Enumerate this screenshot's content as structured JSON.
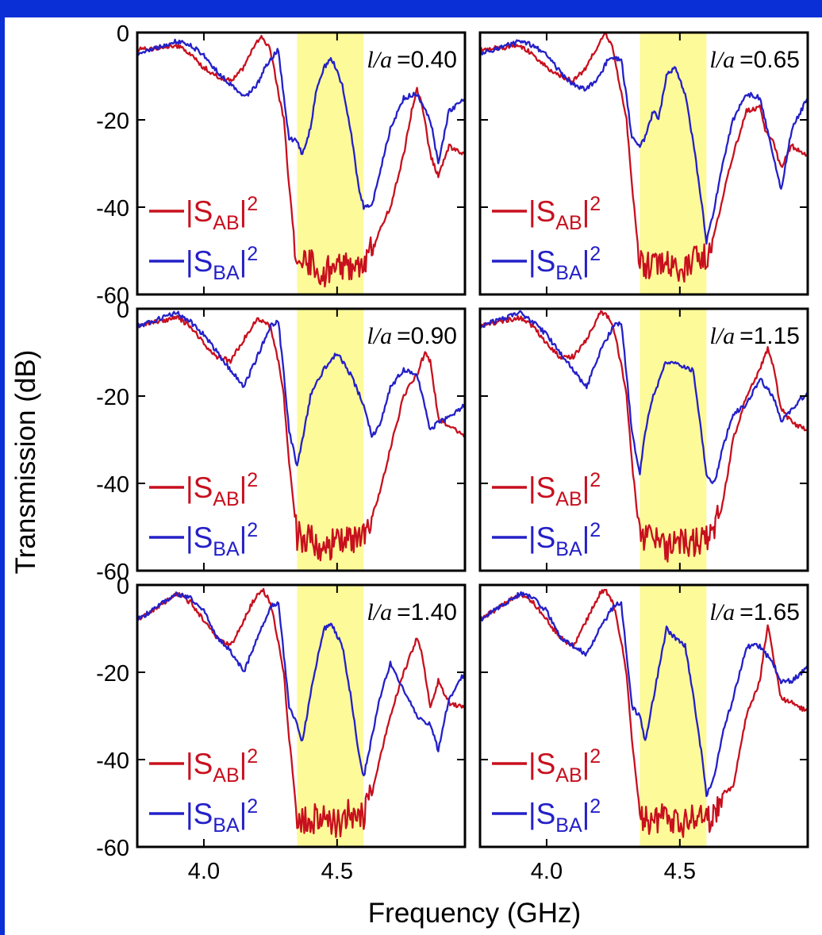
{
  "figure": {
    "ylabel": "Transmission (dB)",
    "xlabel": "Frequency (GHz)",
    "xticks": [
      "4.0",
      "4.5"
    ],
    "yticks": [
      "0",
      "-20",
      "-40",
      "-60"
    ],
    "highlight_band_ghz": [
      4.35,
      4.6
    ],
    "colors": {
      "S_AB": "#c8101e",
      "S_BA": "#2420c8",
      "band": "#fdfa9a",
      "frame_bg": "#0a2fd6"
    }
  },
  "chart_data": [
    {
      "type": "line",
      "label": "l/a =0.40",
      "param_value": "=0.40",
      "xlim": [
        3.75,
        4.98
      ],
      "ylim": [
        -60,
        0
      ],
      "series": [
        {
          "name": "|S_AB|²",
          "legend_text": "|S",
          "legend_sub": "AB",
          "legend_sup": "2",
          "color": "#c8101e",
          "x": [
            3.75,
            3.9,
            3.95,
            4.0,
            4.05,
            4.1,
            4.15,
            4.2,
            4.22,
            4.25,
            4.28,
            4.3,
            4.32,
            4.35,
            4.4,
            4.45,
            4.5,
            4.55,
            4.6,
            4.63,
            4.66,
            4.7,
            4.75,
            4.78,
            4.8,
            4.82,
            4.85,
            4.88,
            4.92,
            4.98
          ],
          "y": [
            -4,
            -3,
            -5,
            -8,
            -10,
            -11,
            -8,
            -2,
            -1,
            -4,
            -14,
            -20,
            -35,
            -54,
            -53,
            -55,
            -53,
            -54,
            -52,
            -50,
            -45,
            -40,
            -28,
            -18,
            -13,
            -17,
            -28,
            -33,
            -26,
            -28
          ]
        },
        {
          "name": "|S_BA|²",
          "legend_text": "|S",
          "legend_sub": "BA",
          "legend_sup": "2",
          "color": "#2420c8",
          "x": [
            3.75,
            3.9,
            3.95,
            4.0,
            4.05,
            4.1,
            4.15,
            4.2,
            4.23,
            4.25,
            4.28,
            4.3,
            4.32,
            4.35,
            4.37,
            4.4,
            4.42,
            4.45,
            4.48,
            4.52,
            4.55,
            4.58,
            4.6,
            4.63,
            4.66,
            4.7,
            4.75,
            4.8,
            4.85,
            4.88,
            4.92,
            4.98
          ],
          "y": [
            -5,
            -2,
            -3,
            -5,
            -9,
            -12,
            -15,
            -12,
            -8,
            -6,
            -4,
            -15,
            -24,
            -25,
            -28,
            -22,
            -14,
            -8,
            -6,
            -12,
            -22,
            -35,
            -40,
            -40,
            -32,
            -22,
            -15,
            -14,
            -20,
            -30,
            -18,
            -15
          ]
        }
      ]
    },
    {
      "type": "line",
      "label": "l/a =0.65",
      "param_value": "=0.65",
      "xlim": [
        3.75,
        4.98
      ],
      "ylim": [
        -60,
        0
      ],
      "series": [
        {
          "name": "|S_AB|²",
          "legend_text": "|S",
          "legend_sub": "AB",
          "legend_sup": "2",
          "color": "#c8101e",
          "x": [
            3.75,
            3.9,
            3.95,
            4.0,
            4.05,
            4.1,
            4.15,
            4.2,
            4.22,
            4.25,
            4.28,
            4.3,
            4.32,
            4.35,
            4.4,
            4.45,
            4.5,
            4.55,
            4.6,
            4.63,
            4.66,
            4.7,
            4.75,
            4.8,
            4.82,
            4.85,
            4.88,
            4.92,
            4.98
          ],
          "y": [
            -4,
            -3,
            -5,
            -8,
            -10,
            -11,
            -8,
            -2,
            0,
            -4,
            -14,
            -20,
            -35,
            -53,
            -54,
            -53,
            -55,
            -52,
            -52,
            -46,
            -38,
            -28,
            -18,
            -17,
            -22,
            -25,
            -31,
            -26,
            -28
          ]
        },
        {
          "name": "|S_BA|²",
          "legend_text": "|S",
          "legend_sub": "BA",
          "legend_sup": "2",
          "color": "#2420c8",
          "x": [
            3.75,
            3.9,
            3.95,
            4.0,
            4.05,
            4.1,
            4.15,
            4.2,
            4.23,
            4.25,
            4.28,
            4.3,
            4.32,
            4.35,
            4.37,
            4.4,
            4.42,
            4.45,
            4.48,
            4.52,
            4.55,
            4.58,
            4.6,
            4.63,
            4.66,
            4.7,
            4.75,
            4.8,
            4.85,
            4.88,
            4.92,
            4.98
          ],
          "y": [
            -5,
            -2,
            -3,
            -5,
            -9,
            -12,
            -13,
            -10,
            -6,
            -6,
            -6,
            -15,
            -24,
            -26,
            -24,
            -18,
            -20,
            -10,
            -8,
            -14,
            -25,
            -38,
            -48,
            -40,
            -30,
            -20,
            -14,
            -15,
            -28,
            -36,
            -22,
            -15
          ]
        }
      ]
    },
    {
      "type": "line",
      "label": "l/a =0.90",
      "param_value": "=0.90",
      "xlim": [
        3.75,
        4.98
      ],
      "ylim": [
        -60,
        0
      ],
      "series": [
        {
          "name": "|S_AB|²",
          "legend_text": "|S",
          "legend_sub": "AB",
          "legend_sup": "2",
          "color": "#c8101e",
          "x": [
            3.75,
            3.9,
            3.95,
            4.0,
            4.05,
            4.1,
            4.15,
            4.2,
            4.25,
            4.28,
            4.3,
            4.32,
            4.35,
            4.4,
            4.45,
            4.5,
            4.55,
            4.6,
            4.63,
            4.66,
            4.7,
            4.75,
            4.8,
            4.83,
            4.85,
            4.88,
            4.92,
            4.98
          ],
          "y": [
            -4,
            -2,
            -4,
            -8,
            -11,
            -12,
            -7,
            -2,
            -4,
            -12,
            -20,
            -35,
            -52,
            -53,
            -55,
            -53,
            -53,
            -52,
            -48,
            -42,
            -32,
            -20,
            -15,
            -10,
            -12,
            -25,
            -27,
            -29
          ]
        },
        {
          "name": "|S_BA|²",
          "legend_text": "|S",
          "legend_sub": "BA",
          "legend_sup": "2",
          "color": "#2420c8",
          "x": [
            3.75,
            3.9,
            3.95,
            4.0,
            4.05,
            4.1,
            4.15,
            4.2,
            4.25,
            4.28,
            4.3,
            4.32,
            4.35,
            4.37,
            4.4,
            4.45,
            4.5,
            4.55,
            4.6,
            4.63,
            4.66,
            4.7,
            4.75,
            4.8,
            4.85,
            4.88,
            4.92,
            4.98
          ],
          "y": [
            -4,
            -1,
            -3,
            -6,
            -10,
            -14,
            -18,
            -11,
            -4,
            -3,
            -15,
            -28,
            -36,
            -30,
            -20,
            -14,
            -10,
            -15,
            -22,
            -29,
            -27,
            -18,
            -14,
            -15,
            -28,
            -26,
            -25,
            -22
          ]
        }
      ]
    },
    {
      "type": "line",
      "label": "l/a =1.15",
      "param_value": "=1.15",
      "xlim": [
        3.75,
        4.98
      ],
      "ylim": [
        -60,
        0
      ],
      "series": [
        {
          "name": "|S_AB|²",
          "legend_text": "|S",
          "legend_sub": "AB",
          "legend_sup": "2",
          "color": "#c8101e",
          "x": [
            3.75,
            3.9,
            3.95,
            4.0,
            4.05,
            4.1,
            4.15,
            4.2,
            4.22,
            4.25,
            4.28,
            4.3,
            4.32,
            4.35,
            4.4,
            4.45,
            4.5,
            4.55,
            4.6,
            4.63,
            4.66,
            4.7,
            4.75,
            4.8,
            4.83,
            4.85,
            4.88,
            4.92,
            4.98
          ],
          "y": [
            -4,
            -2,
            -4,
            -8,
            -11,
            -11,
            -7,
            -1,
            -1,
            -4,
            -13,
            -20,
            -35,
            -53,
            -53,
            -55,
            -53,
            -54,
            -53,
            -50,
            -45,
            -30,
            -20,
            -14,
            -9,
            -13,
            -23,
            -26,
            -28
          ]
        },
        {
          "name": "|S_BA|²",
          "legend_text": "|S",
          "legend_sub": "BA",
          "legend_sup": "2",
          "color": "#2420c8",
          "x": [
            3.75,
            3.9,
            3.95,
            4.0,
            4.05,
            4.1,
            4.15,
            4.2,
            4.25,
            4.28,
            4.3,
            4.32,
            4.35,
            4.37,
            4.4,
            4.45,
            4.5,
            4.55,
            4.58,
            4.6,
            4.63,
            4.66,
            4.7,
            4.75,
            4.8,
            4.85,
            4.88,
            4.92,
            4.98
          ],
          "y": [
            -4,
            -1,
            -3,
            -6,
            -10,
            -14,
            -18,
            -10,
            -4,
            -3,
            -15,
            -28,
            -38,
            -28,
            -20,
            -12,
            -13,
            -14,
            -28,
            -38,
            -40,
            -32,
            -24,
            -22,
            -16,
            -20,
            -26,
            -23,
            -19
          ]
        }
      ]
    },
    {
      "type": "line",
      "label": "l/a =1.40",
      "param_value": "=1.40",
      "xlim": [
        3.75,
        4.98
      ],
      "ylim": [
        -60,
        0
      ],
      "series": [
        {
          "name": "|S_AB|²",
          "legend_text": "|S",
          "legend_sub": "AB",
          "legend_sup": "2",
          "color": "#c8101e",
          "x": [
            3.75,
            3.9,
            3.95,
            4.0,
            4.05,
            4.1,
            4.15,
            4.2,
            4.22,
            4.25,
            4.28,
            4.3,
            4.32,
            4.35,
            4.4,
            4.45,
            4.5,
            4.55,
            4.6,
            4.63,
            4.66,
            4.7,
            4.75,
            4.8,
            4.82,
            4.85,
            4.88,
            4.92,
            4.98
          ],
          "y": [
            -8,
            -2,
            -4,
            -8,
            -12,
            -14,
            -8,
            -2,
            -1,
            -4,
            -13,
            -20,
            -35,
            -53,
            -54,
            -53,
            -55,
            -52,
            -53,
            -48,
            -40,
            -30,
            -20,
            -12,
            -16,
            -28,
            -22,
            -27,
            -28
          ]
        },
        {
          "name": "|S_BA|²",
          "legend_text": "|S",
          "legend_sub": "BA",
          "legend_sup": "2",
          "color": "#2420c8",
          "x": [
            3.75,
            3.9,
            3.95,
            4.0,
            4.05,
            4.1,
            4.15,
            4.2,
            4.25,
            4.28,
            4.3,
            4.32,
            4.35,
            4.37,
            4.4,
            4.45,
            4.48,
            4.52,
            4.55,
            4.58,
            4.6,
            4.63,
            4.66,
            4.7,
            4.75,
            4.8,
            4.85,
            4.88,
            4.92,
            4.98
          ],
          "y": [
            -8,
            -2,
            -3,
            -6,
            -12,
            -15,
            -20,
            -12,
            -5,
            -4,
            -16,
            -28,
            -32,
            -36,
            -25,
            -10,
            -9,
            -14,
            -25,
            -38,
            -44,
            -35,
            -26,
            -18,
            -24,
            -30,
            -32,
            -38,
            -26,
            -20
          ]
        }
      ]
    },
    {
      "type": "line",
      "label": "l/a =1.65",
      "param_value": "=1.65",
      "xlim": [
        3.75,
        4.98
      ],
      "ylim": [
        -60,
        0
      ],
      "series": [
        {
          "name": "|S_AB|²",
          "legend_text": "|S",
          "legend_sub": "AB",
          "legend_sup": "2",
          "color": "#c8101e",
          "x": [
            3.75,
            3.9,
            3.95,
            4.0,
            4.05,
            4.1,
            4.15,
            4.2,
            4.22,
            4.25,
            4.28,
            4.3,
            4.32,
            4.35,
            4.4,
            4.45,
            4.5,
            4.55,
            4.6,
            4.63,
            4.66,
            4.7,
            4.75,
            4.8,
            4.83,
            4.85,
            4.88,
            4.92,
            4.98
          ],
          "y": [
            -8,
            -2,
            -4,
            -8,
            -12,
            -14,
            -8,
            -2,
            -1,
            -4,
            -13,
            -20,
            -35,
            -53,
            -54,
            -53,
            -55,
            -53,
            -54,
            -52,
            -48,
            -46,
            -30,
            -22,
            -9,
            -16,
            -26,
            -27,
            -29
          ]
        },
        {
          "name": "|S_BA|²",
          "legend_text": "|S",
          "legend_sub": "BA",
          "legend_sup": "2",
          "color": "#2420c8",
          "x": [
            3.75,
            3.9,
            3.95,
            4.0,
            4.05,
            4.1,
            4.15,
            4.2,
            4.25,
            4.28,
            4.3,
            4.32,
            4.35,
            4.37,
            4.4,
            4.45,
            4.48,
            4.52,
            4.55,
            4.58,
            4.6,
            4.63,
            4.66,
            4.7,
            4.75,
            4.8,
            4.85,
            4.88,
            4.92,
            4.98
          ],
          "y": [
            -8,
            -2,
            -3,
            -6,
            -12,
            -14,
            -16,
            -10,
            -5,
            -4,
            -16,
            -28,
            -30,
            -36,
            -26,
            -10,
            -12,
            -14,
            -25,
            -38,
            -48,
            -44,
            -34,
            -26,
            -14,
            -14,
            -18,
            -22,
            -22,
            -19
          ]
        }
      ]
    }
  ]
}
